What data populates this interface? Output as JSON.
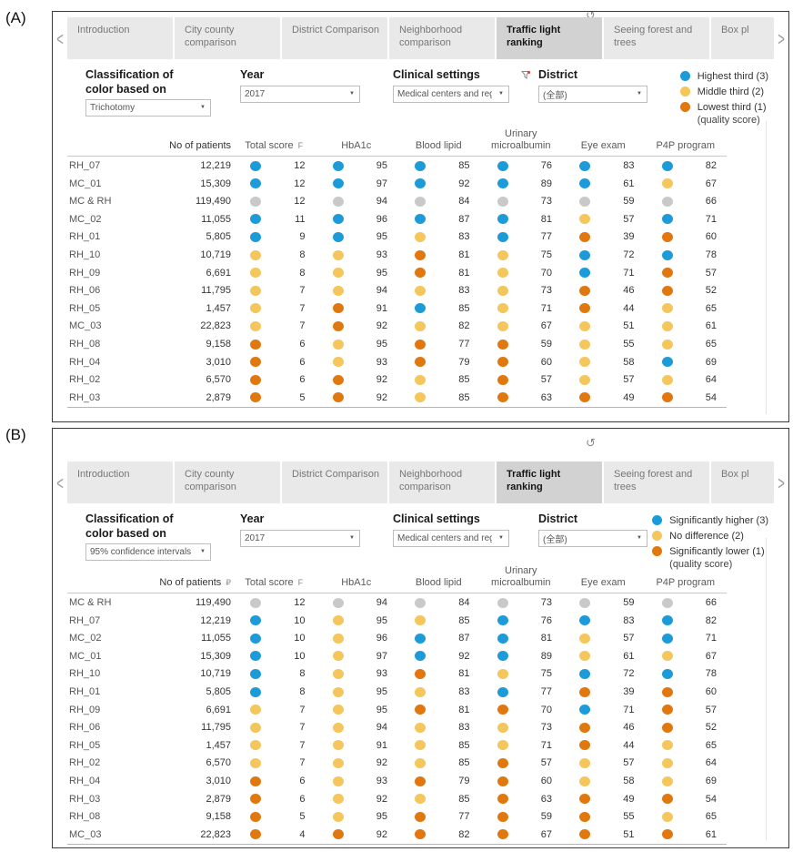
{
  "colors": {
    "blue": "#1d9bd9",
    "yellow": "#f4c65c",
    "orange": "#e1780f",
    "gray": "#c9c9c9"
  },
  "icons": {
    "refresh": "↺",
    "caret": "▼",
    "chevron_left": "<",
    "chevron_right": ">"
  },
  "tabs": [
    "Introduction",
    "City county comparison",
    "District Comparison",
    "Neighborhood comparison",
    "Traffic light ranking",
    "Seeing forest and trees",
    "Box pl"
  ],
  "active_tab_index": 4,
  "table_columns": [
    "No of patients",
    "Total score",
    "HbA1c",
    "Blood lipid",
    "Urinary microalbumin",
    "Eye exam",
    "P4P program"
  ],
  "panels": [
    {
      "label": "(A)",
      "filters": [
        {
          "name": "classification",
          "label_lines": [
            "Classification of",
            "color based on"
          ],
          "value": "Trichotomy",
          "has_filter_icon": false
        },
        {
          "name": "year",
          "label_lines": [
            "Year"
          ],
          "value": "2017",
          "has_filter_icon": false
        },
        {
          "name": "clinical-settings",
          "label_lines": [
            "Clinical settings"
          ],
          "value": "Medical centers and reg...",
          "has_filter_icon": true
        },
        {
          "name": "district",
          "label_lines": [
            "District"
          ],
          "value": "(全部)",
          "has_filter_icon": false
        }
      ],
      "legend": {
        "items": [
          {
            "color": "blue",
            "label": "Highest third (3)"
          },
          {
            "color": "yellow",
            "label": "Middle third (2)"
          },
          {
            "color": "orange",
            "label": "Lowest third (1)"
          }
        ],
        "note": "(quality score)"
      },
      "table": {
        "patients_sort_icon": "",
        "total_sort_icon": "F",
        "rows": [
          {
            "name": "RH_07",
            "patients": "12,219",
            "scores": [
              [
                "blue",
                12
              ],
              [
                "blue",
                95
              ],
              [
                "blue",
                85
              ],
              [
                "blue",
                76
              ],
              [
                "blue",
                83
              ],
              [
                "blue",
                82
              ]
            ]
          },
          {
            "name": "MC_01",
            "patients": "15,309",
            "scores": [
              [
                "blue",
                12
              ],
              [
                "blue",
                97
              ],
              [
                "blue",
                92
              ],
              [
                "blue",
                89
              ],
              [
                "blue",
                61
              ],
              [
                "yellow",
                67
              ]
            ]
          },
          {
            "name": "MC & RH",
            "patients": "119,490",
            "scores": [
              [
                "gray",
                12
              ],
              [
                "gray",
                94
              ],
              [
                "gray",
                84
              ],
              [
                "gray",
                73
              ],
              [
                "gray",
                59
              ],
              [
                "gray",
                66
              ]
            ]
          },
          {
            "name": "MC_02",
            "patients": "11,055",
            "scores": [
              [
                "blue",
                11
              ],
              [
                "blue",
                96
              ],
              [
                "blue",
                87
              ],
              [
                "blue",
                81
              ],
              [
                "yellow",
                57
              ],
              [
                "blue",
                71
              ]
            ]
          },
          {
            "name": "RH_01",
            "patients": "5,805",
            "scores": [
              [
                "blue",
                9
              ],
              [
                "blue",
                95
              ],
              [
                "yellow",
                83
              ],
              [
                "blue",
                77
              ],
              [
                "orange",
                39
              ],
              [
                "orange",
                60
              ]
            ]
          },
          {
            "name": "RH_10",
            "patients": "10,719",
            "scores": [
              [
                "yellow",
                8
              ],
              [
                "yellow",
                93
              ],
              [
                "orange",
                81
              ],
              [
                "yellow",
                75
              ],
              [
                "blue",
                72
              ],
              [
                "blue",
                78
              ]
            ]
          },
          {
            "name": "RH_09",
            "patients": "6,691",
            "scores": [
              [
                "yellow",
                8
              ],
              [
                "yellow",
                95
              ],
              [
                "orange",
                81
              ],
              [
                "yellow",
                70
              ],
              [
                "blue",
                71
              ],
              [
                "orange",
                57
              ]
            ]
          },
          {
            "name": "RH_06",
            "patients": "11,795",
            "scores": [
              [
                "yellow",
                7
              ],
              [
                "yellow",
                94
              ],
              [
                "yellow",
                83
              ],
              [
                "yellow",
                73
              ],
              [
                "orange",
                46
              ],
              [
                "orange",
                52
              ]
            ]
          },
          {
            "name": "RH_05",
            "patients": "1,457",
            "scores": [
              [
                "yellow",
                7
              ],
              [
                "orange",
                91
              ],
              [
                "blue",
                85
              ],
              [
                "yellow",
                71
              ],
              [
                "orange",
                44
              ],
              [
                "yellow",
                65
              ]
            ]
          },
          {
            "name": "MC_03",
            "patients": "22,823",
            "scores": [
              [
                "yellow",
                7
              ],
              [
                "orange",
                92
              ],
              [
                "yellow",
                82
              ],
              [
                "yellow",
                67
              ],
              [
                "yellow",
                51
              ],
              [
                "yellow",
                61
              ]
            ]
          },
          {
            "name": "RH_08",
            "patients": "9,158",
            "scores": [
              [
                "orange",
                6
              ],
              [
                "yellow",
                95
              ],
              [
                "orange",
                77
              ],
              [
                "orange",
                59
              ],
              [
                "yellow",
                55
              ],
              [
                "yellow",
                65
              ]
            ]
          },
          {
            "name": "RH_04",
            "patients": "3,010",
            "scores": [
              [
                "orange",
                6
              ],
              [
                "yellow",
                93
              ],
              [
                "orange",
                79
              ],
              [
                "orange",
                60
              ],
              [
                "yellow",
                58
              ],
              [
                "blue",
                69
              ]
            ]
          },
          {
            "name": "RH_02",
            "patients": "6,570",
            "scores": [
              [
                "orange",
                6
              ],
              [
                "orange",
                92
              ],
              [
                "yellow",
                85
              ],
              [
                "orange",
                57
              ],
              [
                "yellow",
                57
              ],
              [
                "yellow",
                64
              ]
            ]
          },
          {
            "name": "RH_03",
            "patients": "2,879",
            "scores": [
              [
                "orange",
                5
              ],
              [
                "orange",
                92
              ],
              [
                "yellow",
                85
              ],
              [
                "orange",
                63
              ],
              [
                "orange",
                49
              ],
              [
                "orange",
                54
              ]
            ]
          }
        ]
      }
    },
    {
      "label": "(B)",
      "filters": [
        {
          "name": "classification",
          "label_lines": [
            "Classification of",
            "color based on"
          ],
          "value": "95% confidence intervals",
          "has_filter_icon": false
        },
        {
          "name": "year",
          "label_lines": [
            "Year"
          ],
          "value": "2017",
          "has_filter_icon": false
        },
        {
          "name": "clinical-settings",
          "label_lines": [
            "Clinical settings"
          ],
          "value": "Medical centers and reg...",
          "has_filter_icon": false
        },
        {
          "name": "district",
          "label_lines": [
            "District"
          ],
          "value": "(全部)",
          "has_filter_icon": false
        }
      ],
      "legend": {
        "items": [
          {
            "color": "blue",
            "label": "Significantly higher (3)"
          },
          {
            "color": "yellow",
            "label": "No difference (2)"
          },
          {
            "color": "orange",
            "label": "Significantly lower (1)"
          }
        ],
        "note": "(quality score)"
      },
      "table": {
        "patients_sort_icon": "₽",
        "total_sort_icon": "F",
        "rows": [
          {
            "name": "MC & RH",
            "patients": "119,490",
            "scores": [
              [
                "gray",
                12
              ],
              [
                "gray",
                94
              ],
              [
                "gray",
                84
              ],
              [
                "gray",
                73
              ],
              [
                "gray",
                59
              ],
              [
                "gray",
                66
              ]
            ]
          },
          {
            "name": "RH_07",
            "patients": "12,219",
            "scores": [
              [
                "blue",
                10
              ],
              [
                "yellow",
                95
              ],
              [
                "yellow",
                85
              ],
              [
                "blue",
                76
              ],
              [
                "blue",
                83
              ],
              [
                "blue",
                82
              ]
            ]
          },
          {
            "name": "MC_02",
            "patients": "11,055",
            "scores": [
              [
                "blue",
                10
              ],
              [
                "yellow",
                96
              ],
              [
                "blue",
                87
              ],
              [
                "blue",
                81
              ],
              [
                "yellow",
                57
              ],
              [
                "blue",
                71
              ]
            ]
          },
          {
            "name": "MC_01",
            "patients": "15,309",
            "scores": [
              [
                "blue",
                10
              ],
              [
                "yellow",
                97
              ],
              [
                "blue",
                92
              ],
              [
                "blue",
                89
              ],
              [
                "yellow",
                61
              ],
              [
                "yellow",
                67
              ]
            ]
          },
          {
            "name": "RH_10",
            "patients": "10,719",
            "scores": [
              [
                "blue",
                8
              ],
              [
                "yellow",
                93
              ],
              [
                "orange",
                81
              ],
              [
                "yellow",
                75
              ],
              [
                "blue",
                72
              ],
              [
                "blue",
                78
              ]
            ]
          },
          {
            "name": "RH_01",
            "patients": "5,805",
            "scores": [
              [
                "blue",
                8
              ],
              [
                "yellow",
                95
              ],
              [
                "yellow",
                83
              ],
              [
                "blue",
                77
              ],
              [
                "orange",
                39
              ],
              [
                "orange",
                60
              ]
            ]
          },
          {
            "name": "RH_09",
            "patients": "6,691",
            "scores": [
              [
                "yellow",
                7
              ],
              [
                "yellow",
                95
              ],
              [
                "orange",
                81
              ],
              [
                "orange",
                70
              ],
              [
                "blue",
                71
              ],
              [
                "orange",
                57
              ]
            ]
          },
          {
            "name": "RH_06",
            "patients": "11,795",
            "scores": [
              [
                "yellow",
                7
              ],
              [
                "yellow",
                94
              ],
              [
                "yellow",
                83
              ],
              [
                "yellow",
                73
              ],
              [
                "orange",
                46
              ],
              [
                "orange",
                52
              ]
            ]
          },
          {
            "name": "RH_05",
            "patients": "1,457",
            "scores": [
              [
                "yellow",
                7
              ],
              [
                "yellow",
                91
              ],
              [
                "yellow",
                85
              ],
              [
                "yellow",
                71
              ],
              [
                "orange",
                44
              ],
              [
                "yellow",
                65
              ]
            ]
          },
          {
            "name": "RH_02",
            "patients": "6,570",
            "scores": [
              [
                "yellow",
                7
              ],
              [
                "yellow",
                92
              ],
              [
                "yellow",
                85
              ],
              [
                "orange",
                57
              ],
              [
                "yellow",
                57
              ],
              [
                "yellow",
                64
              ]
            ]
          },
          {
            "name": "RH_04",
            "patients": "3,010",
            "scores": [
              [
                "orange",
                6
              ],
              [
                "yellow",
                93
              ],
              [
                "orange",
                79
              ],
              [
                "orange",
                60
              ],
              [
                "yellow",
                58
              ],
              [
                "yellow",
                69
              ]
            ]
          },
          {
            "name": "RH_03",
            "patients": "2,879",
            "scores": [
              [
                "orange",
                6
              ],
              [
                "yellow",
                92
              ],
              [
                "yellow",
                85
              ],
              [
                "orange",
                63
              ],
              [
                "orange",
                49
              ],
              [
                "orange",
                54
              ]
            ]
          },
          {
            "name": "RH_08",
            "patients": "9,158",
            "scores": [
              [
                "orange",
                5
              ],
              [
                "yellow",
                95
              ],
              [
                "orange",
                77
              ],
              [
                "orange",
                59
              ],
              [
                "orange",
                55
              ],
              [
                "yellow",
                65
              ]
            ]
          },
          {
            "name": "MC_03",
            "patients": "22,823",
            "scores": [
              [
                "orange",
                4
              ],
              [
                "orange",
                92
              ],
              [
                "orange",
                82
              ],
              [
                "orange",
                67
              ],
              [
                "orange",
                51
              ],
              [
                "orange",
                61
              ]
            ]
          }
        ]
      }
    }
  ]
}
